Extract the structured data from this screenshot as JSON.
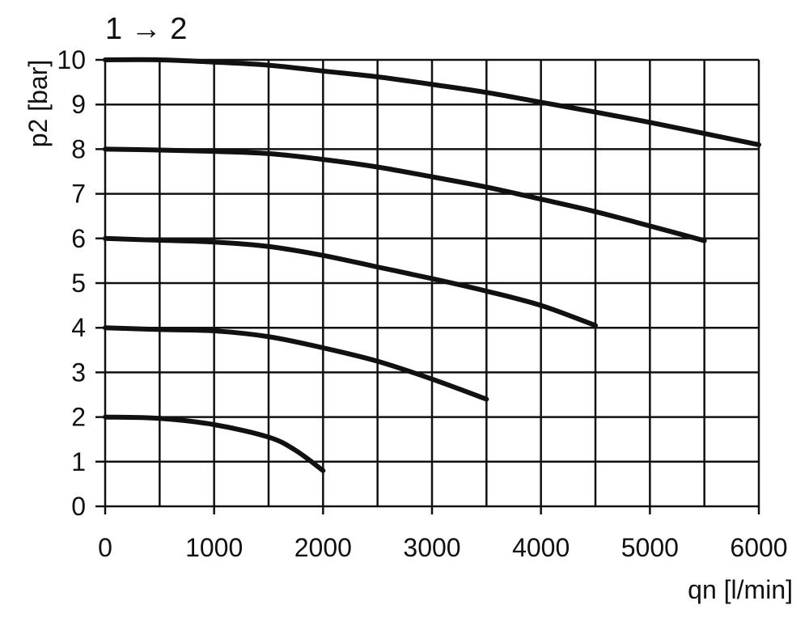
{
  "chart_data": {
    "type": "line",
    "title": "1 → 2",
    "xlabel": "qn [l/min]",
    "ylabel": "p2 [bar]",
    "xlim": [
      0,
      6000
    ],
    "ylim": [
      0,
      10
    ],
    "xticks": [
      0,
      1000,
      2000,
      3000,
      4000,
      5000,
      6000
    ],
    "yticks": [
      0,
      1,
      2,
      3,
      4,
      5,
      6,
      7,
      8,
      9,
      10
    ],
    "grid": true,
    "grid_x_step": 500,
    "grid_y_step": 1,
    "line_color": "#111111",
    "series": [
      {
        "x": [
          0,
          500,
          1000,
          1500,
          2000,
          2500,
          3000,
          3500,
          4000,
          4500,
          5000,
          5500,
          6000
        ],
        "y": [
          10,
          10,
          9.95,
          9.88,
          9.75,
          9.62,
          9.45,
          9.27,
          9.05,
          8.83,
          8.6,
          8.35,
          8.1
        ]
      },
      {
        "x": [
          0,
          500,
          1000,
          1500,
          2000,
          2500,
          3000,
          3500,
          4000,
          4500,
          5000,
          5500
        ],
        "y": [
          8,
          7.98,
          7.95,
          7.9,
          7.77,
          7.6,
          7.38,
          7.15,
          6.88,
          6.6,
          6.28,
          5.95
        ]
      },
      {
        "x": [
          0,
          500,
          1000,
          1500,
          2000,
          2500,
          3000,
          3500,
          4000,
          4500
        ],
        "y": [
          6,
          5.96,
          5.92,
          5.82,
          5.62,
          5.36,
          5.1,
          4.82,
          4.5,
          4.05
        ]
      },
      {
        "x": [
          0,
          500,
          1000,
          1500,
          2000,
          2500,
          3000,
          3500
        ],
        "y": [
          4,
          3.96,
          3.93,
          3.8,
          3.55,
          3.25,
          2.85,
          2.4
        ]
      },
      {
        "x": [
          0,
          500,
          1000,
          1500,
          1750,
          2000
        ],
        "y": [
          2,
          1.97,
          1.83,
          1.55,
          1.25,
          0.8
        ]
      }
    ]
  }
}
